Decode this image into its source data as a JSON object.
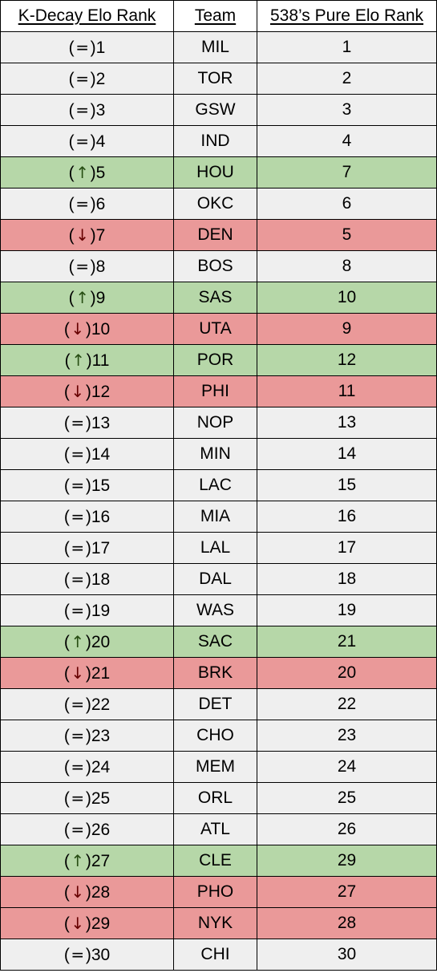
{
  "table": {
    "headers": [
      "K-Decay Elo Rank",
      "Team",
      "538’s Pure Elo Rank"
    ],
    "rows": [
      {
        "change": "=",
        "kdecay": "1",
        "team": "MIL",
        "pure": "1"
      },
      {
        "change": "=",
        "kdecay": "2",
        "team": "TOR",
        "pure": "2"
      },
      {
        "change": "=",
        "kdecay": "3",
        "team": "GSW",
        "pure": "3"
      },
      {
        "change": "=",
        "kdecay": "4",
        "team": "IND",
        "pure": "4"
      },
      {
        "change": "↑",
        "kdecay": "5",
        "team": "HOU",
        "pure": "7"
      },
      {
        "change": "=",
        "kdecay": "6",
        "team": "OKC",
        "pure": "6"
      },
      {
        "change": "↓",
        "kdecay": "7",
        "team": "DEN",
        "pure": "5"
      },
      {
        "change": "=",
        "kdecay": "8",
        "team": "BOS",
        "pure": "8"
      },
      {
        "change": "↑",
        "kdecay": "9",
        "team": "SAS",
        "pure": "10"
      },
      {
        "change": "↓",
        "kdecay": "10",
        "team": "UTA",
        "pure": "9"
      },
      {
        "change": "↑",
        "kdecay": "11",
        "team": "POR",
        "pure": "12"
      },
      {
        "change": "↓",
        "kdecay": "12",
        "team": "PHI",
        "pure": "11"
      },
      {
        "change": "=",
        "kdecay": "13",
        "team": "NOP",
        "pure": "13"
      },
      {
        "change": "=",
        "kdecay": "14",
        "team": "MIN",
        "pure": "14"
      },
      {
        "change": "=",
        "kdecay": "15",
        "team": "LAC",
        "pure": "15"
      },
      {
        "change": "=",
        "kdecay": "16",
        "team": "MIA",
        "pure": "16"
      },
      {
        "change": "=",
        "kdecay": "17",
        "team": "LAL",
        "pure": "17"
      },
      {
        "change": "=",
        "kdecay": "18",
        "team": "DAL",
        "pure": "18"
      },
      {
        "change": "=",
        "kdecay": "19",
        "team": "WAS",
        "pure": "19"
      },
      {
        "change": "↑",
        "kdecay": "20",
        "team": "SAC",
        "pure": "21"
      },
      {
        "change": "↓",
        "kdecay": "21",
        "team": "BRK",
        "pure": "20"
      },
      {
        "change": "=",
        "kdecay": "22",
        "team": "DET",
        "pure": "22"
      },
      {
        "change": "=",
        "kdecay": "23",
        "team": "CHO",
        "pure": "23"
      },
      {
        "change": "=",
        "kdecay": "24",
        "team": "MEM",
        "pure": "24"
      },
      {
        "change": "=",
        "kdecay": "25",
        "team": "ORL",
        "pure": "25"
      },
      {
        "change": "=",
        "kdecay": "26",
        "team": "ATL",
        "pure": "26"
      },
      {
        "change": "↑",
        "kdecay": "27",
        "team": "CLE",
        "pure": "29"
      },
      {
        "change": "↓",
        "kdecay": "28",
        "team": "PHO",
        "pure": "27"
      },
      {
        "change": "↓",
        "kdecay": "29",
        "team": "NYK",
        "pure": "28"
      },
      {
        "change": "=",
        "kdecay": "30",
        "team": "CHI",
        "pure": "30"
      }
    ]
  },
  "colors": {
    "same": "#efefef",
    "up": "#b6d7a8",
    "down": "#ea9999",
    "up_arrow": "#274e13",
    "down_arrow": "#660000",
    "border": "#000000"
  }
}
